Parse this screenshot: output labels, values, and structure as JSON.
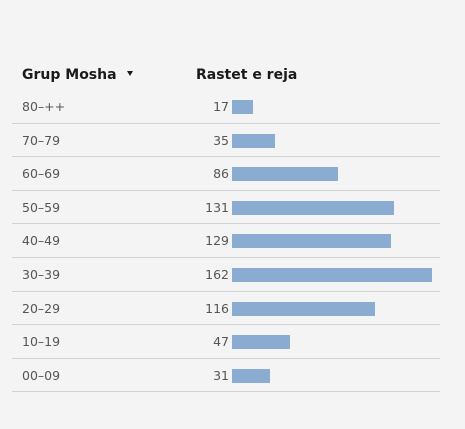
{
  "colors": {
    "bar": "#8aacd1",
    "divider": "#d2d2d2",
    "background": "#f4f4f4"
  },
  "header": {
    "age_label": "Grup Mosha",
    "value_label": "Rastet e reja",
    "sort_icon": "caret-down-icon"
  },
  "chart_data": {
    "type": "bar",
    "orientation": "horizontal",
    "xlim": [
      0,
      162
    ],
    "grid": false,
    "categories": [
      "80–++",
      "70–79",
      "60–69",
      "50–59",
      "40–49",
      "30–39",
      "20–29",
      "10–19",
      "00–09"
    ],
    "values": [
      17,
      35,
      86,
      131,
      129,
      162,
      116,
      47,
      31
    ],
    "xlabel": "Rastet e reja",
    "ylabel": "Grup Mosha"
  }
}
